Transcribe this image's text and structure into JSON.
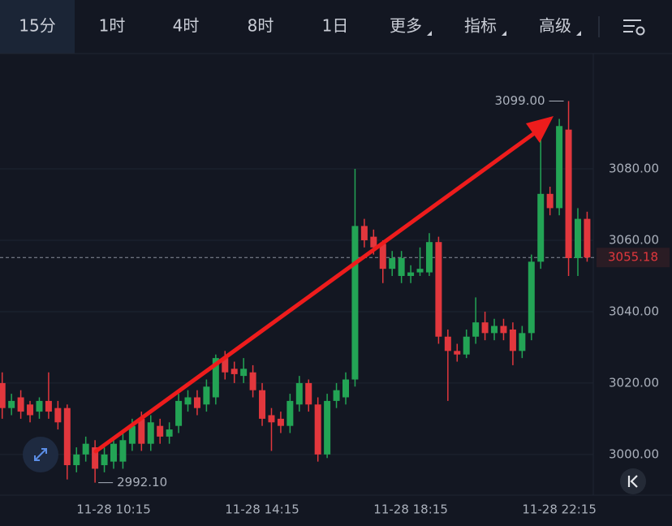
{
  "toolbar": {
    "tabs": [
      "15分",
      "1时",
      "4时",
      "8时",
      "1日",
      "更多",
      "指标",
      "高级"
    ],
    "active": 0
  },
  "chart_data": {
    "type": "candlestick",
    "categories": [
      null,
      null,
      null,
      null,
      null,
      null,
      null,
      null,
      null,
      null,
      null,
      null,
      "11-28 10:15",
      null,
      null,
      null,
      null,
      null,
      null,
      null,
      null,
      null,
      null,
      null,
      null,
      null,
      null,
      null,
      "11-28 14:15",
      null,
      null,
      null,
      null,
      null,
      null,
      null,
      null,
      null,
      null,
      null,
      null,
      null,
      null,
      null,
      "11-28 18:15",
      null,
      null,
      null,
      null,
      null,
      null,
      null,
      null,
      null,
      null,
      null,
      null,
      null,
      null,
      null,
      "11-28 22:15",
      null,
      null,
      null
    ],
    "open": [
      3020,
      3013,
      3016,
      3014,
      3012,
      3015,
      3013,
      3013,
      2997,
      3000,
      3002,
      2997,
      2998,
      2998,
      3003,
      3010,
      3003,
      3008,
      3005,
      3008,
      3014,
      3016,
      3014,
      3016,
      3027,
      3024,
      3022,
      3023,
      3018,
      3011,
      3010,
      3008,
      3014,
      3020,
      3014,
      3000,
      3015,
      3016,
      3021,
      3064,
      3061,
      3059,
      3052,
      3050,
      3050,
      3051,
      3051,
      3059.5,
      3033,
      3029,
      3028,
      3033,
      3037,
      3034,
      3036,
      3035,
      3029,
      3034,
      3054,
      3073,
      3069,
      3091,
      3055,
      3066
    ],
    "high": [
      3023,
      3017,
      3018,
      3015,
      3016,
      3023,
      3015,
      3014,
      3002,
      3005,
      3004,
      3002,
      3005,
      3006,
      3010,
      3012,
      3011,
      3010,
      3009,
      3017,
      3018,
      3018,
      3021,
      3028,
      3029,
      3026,
      3027,
      3025,
      3020,
      3013,
      3012,
      3017,
      3022,
      3021,
      3016,
      3017,
      3020,
      3023,
      3080,
      3066,
      3063,
      3060,
      3057,
      3057,
      3053,
      3058,
      3062,
      3061,
      3035,
      3031,
      3035,
      3044,
      3040,
      3038,
      3038,
      3037,
      3036,
      3056,
      3090,
      3075,
      3094,
      3099,
      3069,
      3068
    ],
    "low": [
      3010,
      3011,
      3010,
      3009,
      3010,
      3010,
      3007,
      2993,
      2995,
      2998,
      2992.1,
      2995,
      2996,
      2996,
      3001,
      3001,
      3001,
      3003,
      3003,
      3006,
      3012,
      3011,
      3012,
      3014,
      3021,
      3020,
      3020,
      3016,
      3008,
      3001,
      3006,
      3006,
      3012,
      3012,
      2998,
      2999,
      3013,
      3014,
      3019,
      3058,
      3056,
      3048,
      3050,
      3048,
      3048,
      3050,
      3050,
      3031,
      3015,
      3026,
      3027,
      3031,
      3032,
      3032,
      3032,
      3025,
      3027,
      3032,
      3052,
      3067,
      3067,
      3050,
      3050,
      3054
    ],
    "close": [
      3013,
      3015,
      3012,
      3011,
      3015,
      3012,
      3009,
      2997,
      3000,
      3003,
      2996,
      3000,
      3003,
      3004,
      3008,
      3003,
      3009,
      3005,
      3007,
      3015,
      3016,
      3013,
      3019,
      3027,
      3023,
      3022.5,
      3024,
      3018,
      3010,
      3009,
      3008,
      3015,
      3020,
      3014,
      3000,
      3015,
      3018,
      3021,
      3064,
      3060,
      3058,
      3052,
      3055,
      3055,
      3051,
      3052,
      3059.5,
      3033,
      3029,
      3028,
      3033,
      3037,
      3034,
      3036,
      3034,
      3029,
      3034,
      3054,
      3073,
      3069,
      3092,
      3055,
      3066,
      3055.18
    ],
    "up_color": "#23a455",
    "down_color": "#e2373d",
    "ylim": [
      2988.6,
      3112.3
    ],
    "yticks": [
      {
        "value": 3000,
        "label": "3000.00"
      },
      {
        "value": 3020,
        "label": "3020.00"
      },
      {
        "value": 3040,
        "label": "3040.00"
      },
      {
        "value": 3060,
        "label": "3060.00"
      },
      {
        "value": 3080,
        "label": "3080.00"
      }
    ],
    "grid": true,
    "last_price": {
      "value": 3055.18,
      "label": "3055.18"
    },
    "max_label": {
      "value": 3099,
      "label": "3099.00"
    },
    "min_label": {
      "value": 2992.1,
      "label": "2992.10"
    }
  }
}
